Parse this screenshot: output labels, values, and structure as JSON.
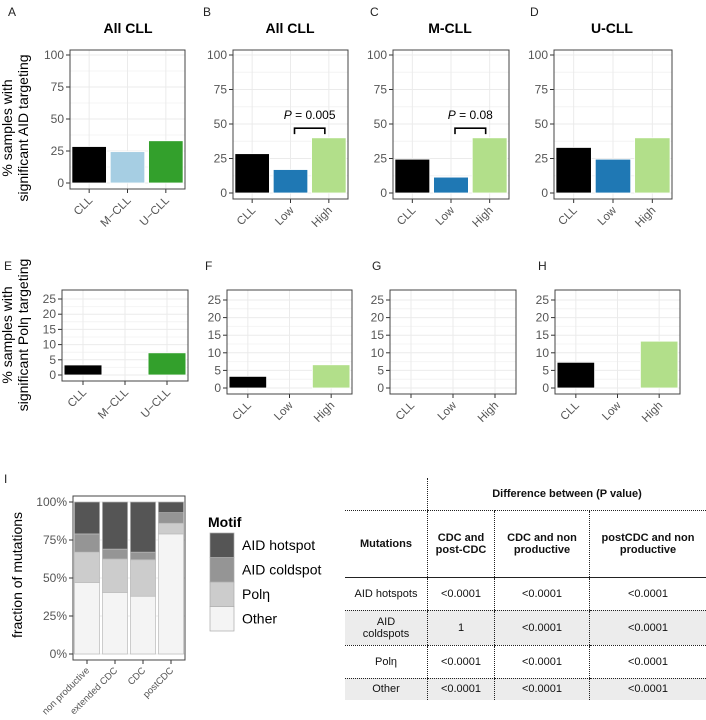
{
  "chart_data": [
    {
      "panel": "A",
      "type": "bar",
      "title": "All CLL",
      "ylabel": "% samples with significant AID targeting",
      "categories": [
        "CLL",
        "M−CLL",
        "U−CLL"
      ],
      "values": [
        28.5,
        24.5,
        33
      ],
      "colors": [
        "#000000",
        "#a6cee3",
        "#33a02c"
      ],
      "ylim": [
        0,
        100
      ],
      "yticks": [
        "0",
        "25",
        "50",
        "75",
        "100"
      ],
      "grid": true
    },
    {
      "panel": "B",
      "type": "bar",
      "title": "All CLL",
      "categories": [
        "CLL",
        "Low",
        "High"
      ],
      "values": [
        28.5,
        17,
        40
      ],
      "colors": [
        "#000000",
        "#1f78b4",
        "#b2df8a"
      ],
      "ylim": [
        0,
        100
      ],
      "yticks": [
        "0",
        "25",
        "50",
        "75",
        "100"
      ],
      "annotation": {
        "p": "P",
        "text": " = 0.005",
        "between": [
          "Low",
          "High"
        ],
        "y": 47
      },
      "grid": true
    },
    {
      "panel": "C",
      "type": "bar",
      "title": "M-CLL",
      "categories": [
        "CLL",
        "Low",
        "High"
      ],
      "values": [
        24.5,
        11.5,
        40
      ],
      "colors": [
        "#000000",
        "#1f78b4",
        "#b2df8a"
      ],
      "ylim": [
        0,
        100
      ],
      "yticks": [
        "0",
        "25",
        "50",
        "75",
        "100"
      ],
      "annotation": {
        "p": "P",
        "text": " = 0.08",
        "between": [
          "Low",
          "High"
        ],
        "y": 47
      },
      "grid": true
    },
    {
      "panel": "D",
      "type": "bar",
      "title": "U-CLL",
      "categories": [
        "CLL",
        "Low",
        "High"
      ],
      "values": [
        33,
        24.5,
        40
      ],
      "colors": [
        "#000000",
        "#1f78b4",
        "#b2df8a"
      ],
      "ylim": [
        0,
        100
      ],
      "yticks": [
        "0",
        "25",
        "50",
        "75",
        "100"
      ],
      "grid": true
    },
    {
      "panel": "E",
      "type": "bar",
      "title": "",
      "ylabel": "% samples with significant Polη targeting",
      "categories": [
        "CLL",
        "M−CLL",
        "U−CLL"
      ],
      "values": [
        3.3,
        0,
        7.3
      ],
      "colors": [
        "#000000",
        "#a6cee3",
        "#33a02c"
      ],
      "ylim": [
        0,
        25
      ],
      "yticks": [
        "0",
        "5",
        "10",
        "15",
        "20",
        "25"
      ],
      "grid": true
    },
    {
      "panel": "F",
      "type": "bar",
      "title": "",
      "categories": [
        "CLL",
        "Low",
        "High"
      ],
      "values": [
        3.3,
        0,
        6.6
      ],
      "colors": [
        "#000000",
        "#1f78b4",
        "#b2df8a"
      ],
      "ylim": [
        0,
        25
      ],
      "yticks": [
        "0",
        "5",
        "10",
        "15",
        "20",
        "25"
      ],
      "grid": true
    },
    {
      "panel": "G",
      "type": "bar",
      "title": "",
      "categories": [
        "CLL",
        "Low",
        "High"
      ],
      "values": [
        0,
        0,
        0
      ],
      "colors": [
        "#000000",
        "#1f78b4",
        "#b2df8a"
      ],
      "ylim": [
        0,
        25
      ],
      "yticks": [
        "0",
        "5",
        "10",
        "15",
        "20",
        "25"
      ],
      "grid": true
    },
    {
      "panel": "H",
      "type": "bar",
      "title": "",
      "categories": [
        "CLL",
        "Low",
        "High"
      ],
      "values": [
        7.3,
        0,
        13.3
      ],
      "colors": [
        "#000000",
        "#1f78b4",
        "#b2df8a"
      ],
      "ylim": [
        0,
        25
      ],
      "yticks": [
        "0",
        "5",
        "10",
        "15",
        "20",
        "25"
      ],
      "grid": true
    },
    {
      "panel": "I",
      "type": "bar",
      "stacked": true,
      "ylabel": "fraction of mutations",
      "categories": [
        "non productive",
        "extended CDC",
        "CDC",
        "postCDC"
      ],
      "yticks": [
        "0%",
        "25%",
        "50%",
        "75%",
        "100%"
      ],
      "ylim": [
        0,
        100
      ],
      "legend": {
        "title": "Motif",
        "position": "right"
      },
      "series": [
        {
          "name": "AID hotspot",
          "color": "#555555",
          "values": [
            21,
            31,
            33,
            7
          ]
        },
        {
          "name": "AID coldspot",
          "color": "#959595",
          "values": [
            12,
            6.5,
            5,
            7
          ]
        },
        {
          "name": "Polη",
          "color": "#cccccc",
          "values": [
            20,
            22,
            24,
            7
          ]
        },
        {
          "name": "Other",
          "color": "#f4f4f4",
          "values": [
            47,
            40.5,
            38,
            79
          ]
        }
      ]
    }
  ],
  "table": {
    "group_header": "Difference between (P value)",
    "headers": [
      "Mutations",
      "CDC and post-CDC",
      "CDC and non productive",
      "postCDC and non productive"
    ],
    "rows": [
      [
        "AID hotspots",
        "<0.0001",
        "<0.0001",
        "<0.0001"
      ],
      [
        "AID coldspots",
        "1",
        "<0.0001",
        "<0.0001"
      ],
      [
        "Polη",
        "<0.0001",
        "<0.0001",
        "<0.0001"
      ],
      [
        "Other",
        "<0.0001",
        "<0.0001",
        "<0.0001"
      ]
    ]
  }
}
